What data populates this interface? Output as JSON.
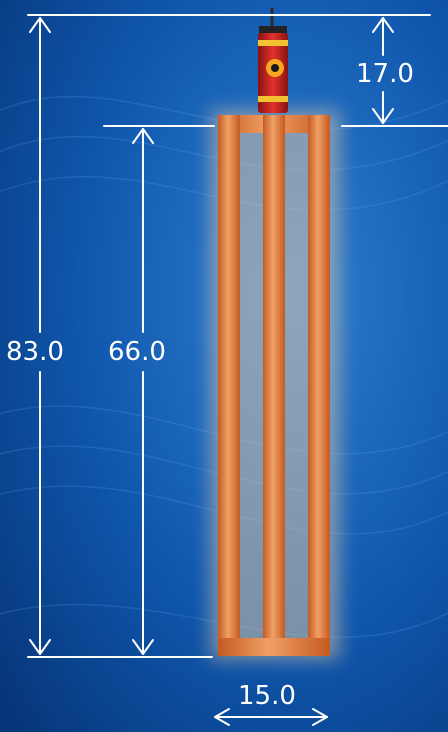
{
  "diagram": {
    "labels": {
      "overall_height": "83.0",
      "frame_height": "66.0",
      "cap_height": "17.0",
      "width": "15.0"
    }
  },
  "colors": {
    "background": "#0d4ea0",
    "wood": "#e07a3c",
    "dimension_lines": "#ffffff",
    "canister": "#c0201e"
  }
}
